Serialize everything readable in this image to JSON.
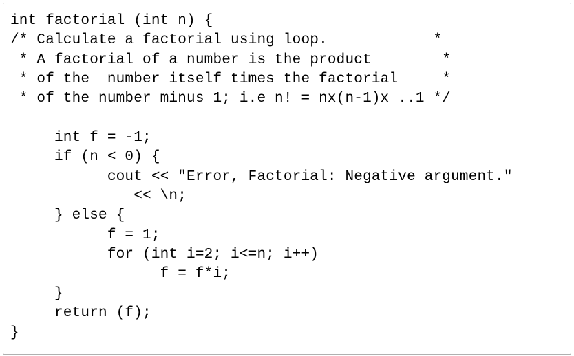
{
  "code_block": {
    "type": "document",
    "language": "cpp",
    "font_family": "Courier New",
    "font_size_pt": 16,
    "line_height": 1.35,
    "text_color": "#010101",
    "background_color": "#ffffff",
    "border_color": "#b0b0b0",
    "lines": [
      "int factorial (int n) {",
      "/* Calculate a factorial using loop.            *",
      " * A factorial of a number is the product        *",
      " * of the  number itself times the factorial     *",
      " * of the number minus 1; i.e n! = nx(n-1)x ..1 */",
      "",
      "     int f = -1;",
      "     if (n < 0) {",
      "           cout << \"Error, Factorial: Negative argument.\"",
      "              << \\n;",
      "     } else {",
      "           f = 1;",
      "           for (int i=2; i<=n; i++)",
      "                 f = f*i;",
      "     }",
      "     return (f);",
      "}"
    ]
  }
}
